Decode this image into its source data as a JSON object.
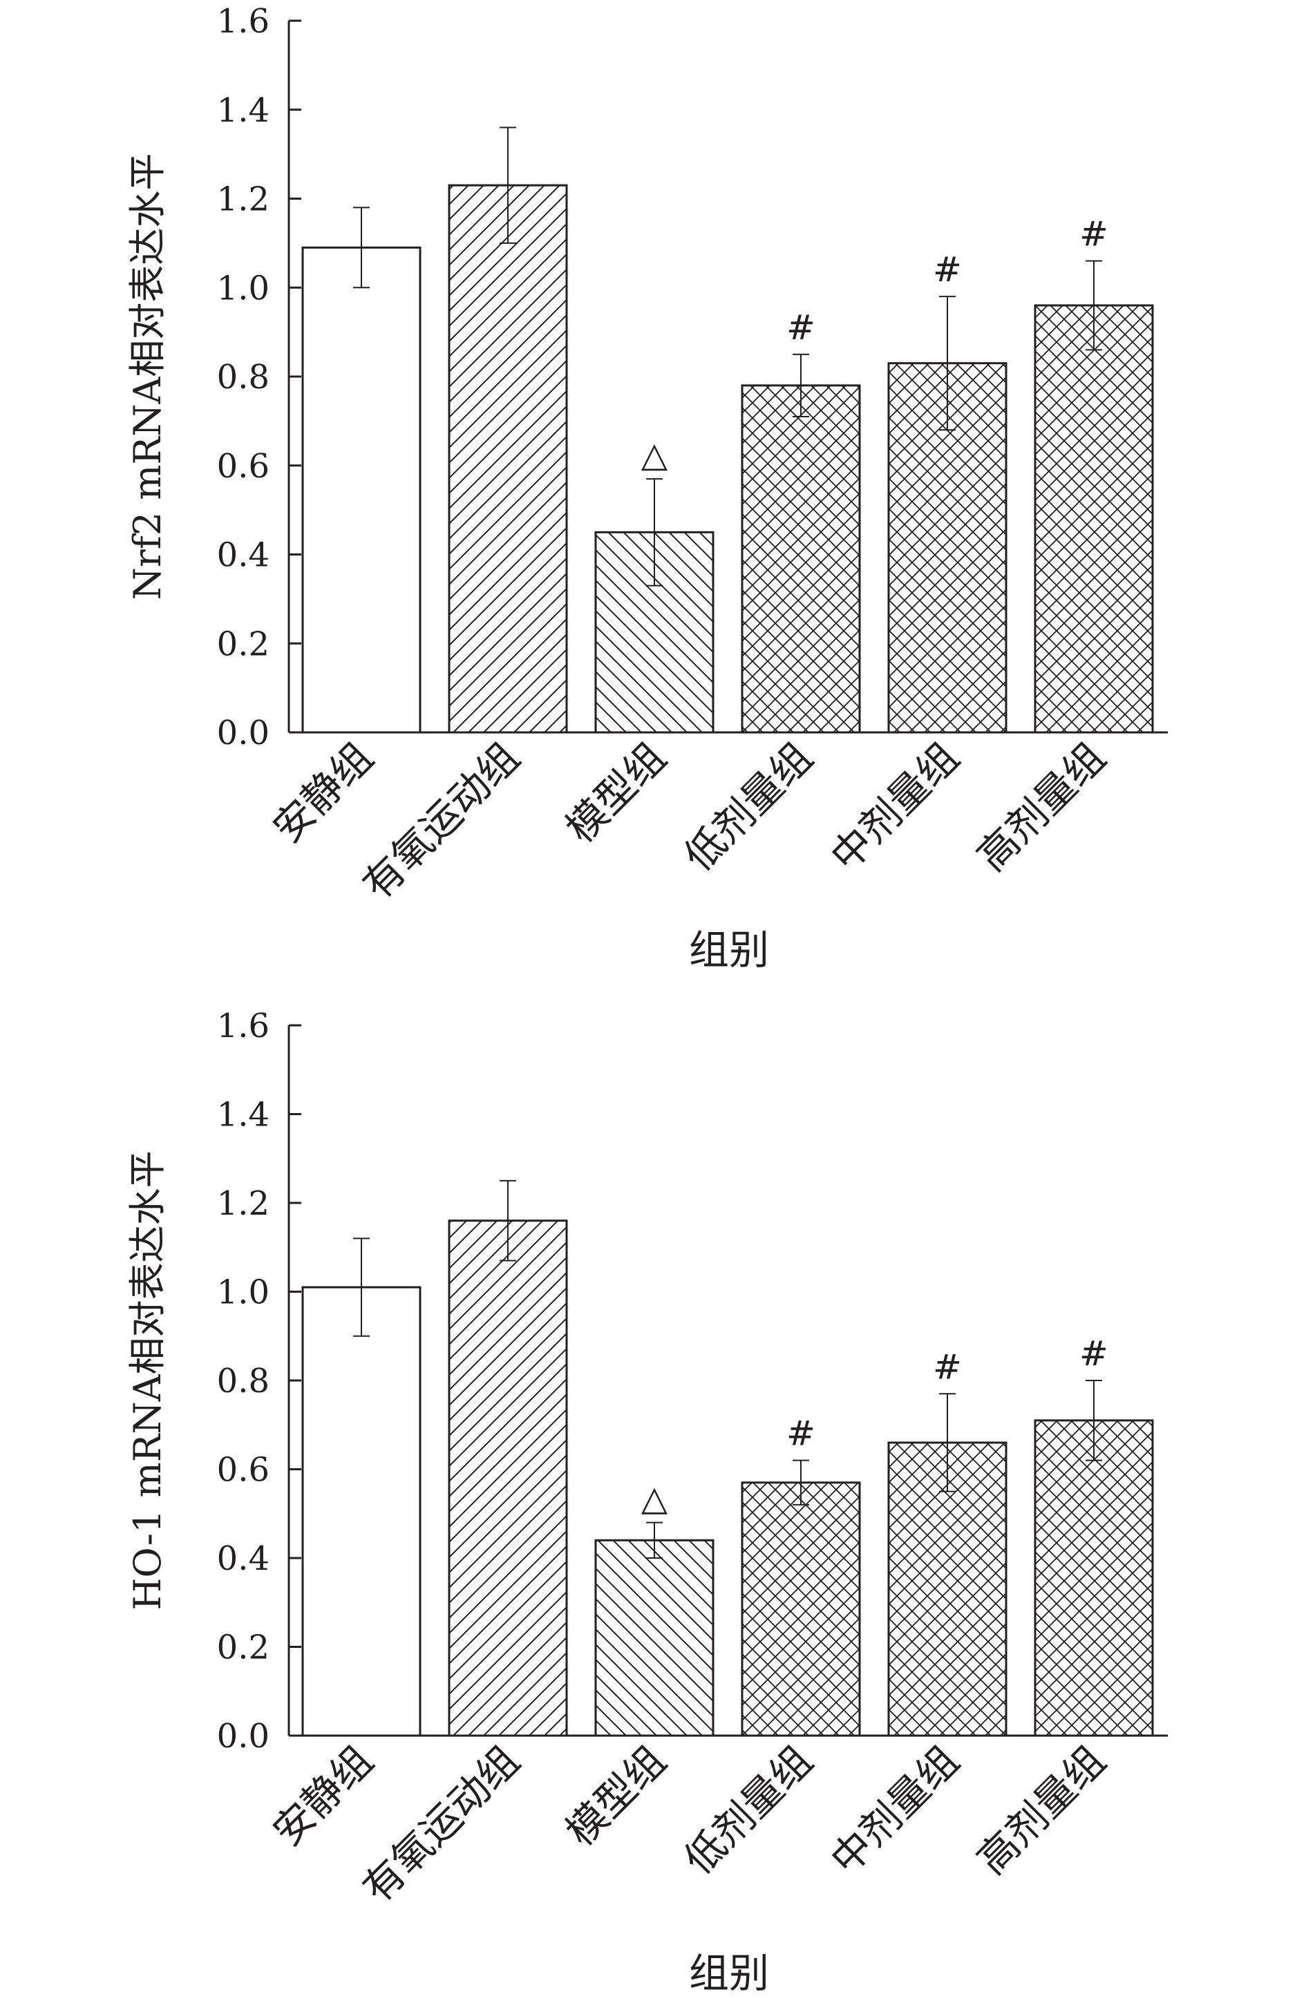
{
  "colors": {
    "ink": "#231f20",
    "background": "#ffffff"
  },
  "chart_data": [
    {
      "type": "bar",
      "title": "",
      "xlabel": "组别",
      "ylabel": "Nrf2 mRNA相对表达水平",
      "ylim": [
        0,
        1.6
      ],
      "yticks": [
        "0.0",
        "0.2",
        "0.4",
        "0.6",
        "0.8",
        "1.0",
        "1.2",
        "1.4",
        "1.6"
      ],
      "grid": false,
      "legend": "none",
      "categories": [
        "安静组",
        "有氧运动组",
        "模型组",
        "低剂量组",
        "中剂量组",
        "高剂量组"
      ],
      "values": [
        1.09,
        1.23,
        0.45,
        0.78,
        0.83,
        0.96
      ],
      "errors": [
        0.09,
        0.13,
        0.12,
        0.07,
        0.15,
        0.1
      ],
      "markers": [
        "",
        "",
        "△",
        "#",
        "#",
        "#"
      ],
      "fill_patterns": [
        "none",
        "diagonal-forward",
        "diagonal-back",
        "crosshatch",
        "crosshatch",
        "crosshatch"
      ]
    },
    {
      "type": "bar",
      "title": "",
      "xlabel": "组别",
      "ylabel": "HO-1 mRNA相对表达水平",
      "ylim": [
        0,
        1.6
      ],
      "yticks": [
        "0.0",
        "0.2",
        "0.4",
        "0.6",
        "0.8",
        "1.0",
        "1.2",
        "1.4",
        "1.6"
      ],
      "grid": false,
      "legend": "none",
      "categories": [
        "安静组",
        "有氧运动组",
        "模型组",
        "低剂量组",
        "中剂量组",
        "高剂量组"
      ],
      "values": [
        1.01,
        1.16,
        0.44,
        0.57,
        0.66,
        0.71
      ],
      "errors": [
        0.11,
        0.09,
        0.04,
        0.05,
        0.11,
        0.09
      ],
      "markers": [
        "",
        "",
        "△",
        "#",
        "#",
        "#"
      ],
      "fill_patterns": [
        "none",
        "diagonal-forward",
        "diagonal-back",
        "crosshatch",
        "crosshatch",
        "crosshatch"
      ]
    }
  ]
}
